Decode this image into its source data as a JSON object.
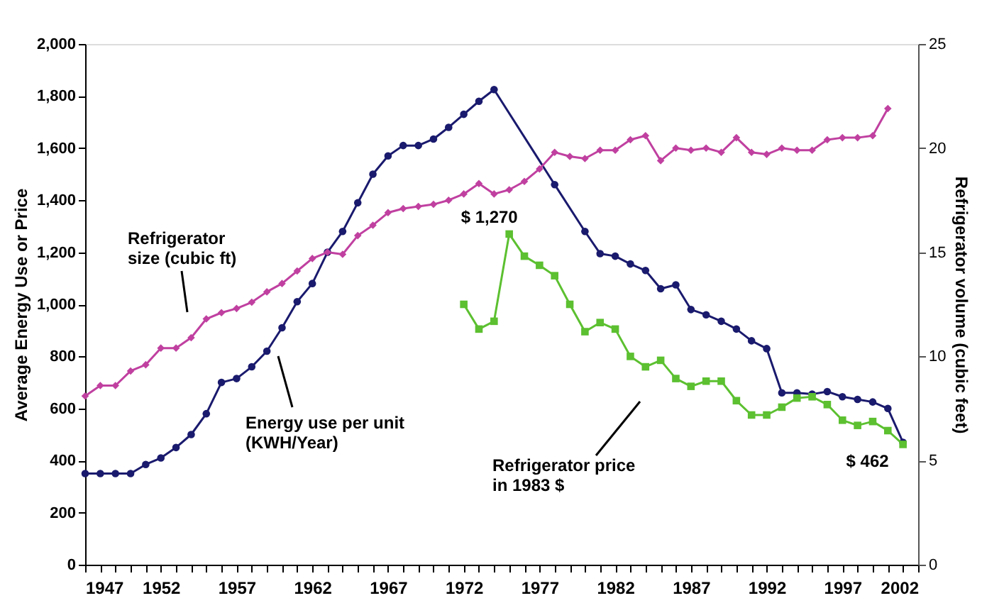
{
  "chart_data": {
    "type": "line",
    "ylabel": "Average Energy Use or Price",
    "y2label": "Refrigerator volume (cubic feet)",
    "xlim": [
      1947,
      2002
    ],
    "xticks": [
      1947,
      {
        "value": 1948,
        "label": null
      },
      {
        "value": 1949,
        "label": null
      },
      {
        "value": 1950,
        "label": null
      },
      {
        "value": 1951,
        "label": null
      },
      1952,
      {
        "value": 1953,
        "label": null
      },
      {
        "value": 1954,
        "label": null
      },
      {
        "value": 1955,
        "label": null
      },
      {
        "value": 1956,
        "label": null
      },
      1957,
      {
        "value": 1958,
        "label": null
      },
      {
        "value": 1959,
        "label": null
      },
      {
        "value": 1960,
        "label": null
      },
      {
        "value": 1961,
        "label": null
      },
      1962,
      {
        "value": 1963,
        "label": null
      },
      {
        "value": 1964,
        "label": null
      },
      {
        "value": 1965,
        "label": null
      },
      {
        "value": 1966,
        "label": null
      },
      1967,
      {
        "value": 1968,
        "label": null
      },
      {
        "value": 1969,
        "label": null
      },
      {
        "value": 1970,
        "label": null
      },
      {
        "value": 1971,
        "label": null
      },
      1972,
      {
        "value": 1973,
        "label": null
      },
      {
        "value": 1974,
        "label": null
      },
      {
        "value": 1975,
        "label": null
      },
      {
        "value": 1976,
        "label": null
      },
      1977,
      {
        "value": 1978,
        "label": null
      },
      {
        "value": 1979,
        "label": null
      },
      {
        "value": 1980,
        "label": null
      },
      {
        "value": 1981,
        "label": null
      },
      1982,
      {
        "value": 1983,
        "label": null
      },
      {
        "value": 1984,
        "label": null
      },
      {
        "value": 1985,
        "label": null
      },
      {
        "value": 1986,
        "label": null
      },
      1987,
      {
        "value": 1988,
        "label": null
      },
      {
        "value": 1989,
        "label": null
      },
      {
        "value": 1990,
        "label": null
      },
      {
        "value": 1991,
        "label": null
      },
      1992,
      {
        "value": 1993,
        "label": null
      },
      {
        "value": 1994,
        "label": null
      },
      {
        "value": 1995,
        "label": null
      },
      {
        "value": 1996,
        "label": null
      },
      1997,
      {
        "value": 1998,
        "label": null
      },
      {
        "value": 1999,
        "label": null
      },
      {
        "value": 2000,
        "label": null
      },
      {
        "value": 2001,
        "label": null
      },
      2002
    ],
    "ylim": [
      0,
      2000
    ],
    "yticks": [
      0,
      200,
      400,
      600,
      800,
      {
        "value": 1000,
        "label": "1,000"
      },
      {
        "value": 1200,
        "label": "1,200"
      },
      {
        "value": 1400,
        "label": "1,400"
      },
      {
        "value": 1600,
        "label": "1,600"
      },
      {
        "value": 1800,
        "label": "1,800"
      },
      {
        "value": 2000,
        "label": "2,000"
      }
    ],
    "y2lim": [
      0,
      25
    ],
    "y2ticks": [
      0,
      5,
      10,
      15,
      20,
      25
    ],
    "grid": false,
    "series": [
      {
        "name": "Refrigerator\nsize (cubic ft)",
        "color": "#c040a0",
        "axis": "y2",
        "marker": "diamond",
        "x": [
          1947,
          1948,
          1949,
          1950,
          1951,
          1952,
          1953,
          1954,
          1955,
          1956,
          1957,
          1958,
          1959,
          1960,
          1961,
          1962,
          1963,
          1964,
          1965,
          1966,
          1967,
          1968,
          1969,
          1970,
          1971,
          1972,
          1973,
          1974,
          1975,
          1976,
          1977,
          1978,
          1979,
          1980,
          1981,
          1982,
          1983,
          1984,
          1985,
          1986,
          1987,
          1988,
          1989,
          1990,
          1991,
          1992,
          1993,
          1994,
          1995,
          1996,
          1997,
          1998,
          1999,
          2000
        ],
        "values": [
          8.1,
          8.6,
          8.6,
          9.3,
          9.6,
          10.4,
          10.4,
          10.9,
          11.8,
          12.1,
          12.3,
          12.6,
          13.1,
          13.5,
          14.1,
          14.7,
          15.0,
          14.9,
          15.8,
          16.3,
          16.9,
          17.1,
          17.2,
          17.3,
          17.5,
          17.8,
          18.3,
          17.8,
          18.0,
          18.4,
          19.0,
          19.8,
          19.6,
          19.5,
          19.9,
          19.9,
          20.4,
          20.6,
          19.4,
          20.0,
          19.9,
          20.0,
          19.8,
          20.5,
          19.8,
          19.7,
          20.0,
          19.9,
          19.9,
          20.4,
          20.5,
          20.5,
          20.6,
          21.9
        ]
      },
      {
        "name": "Energy use per unit\n(KWH/Year)",
        "color": "#1a1a6e",
        "marker": "circle",
        "x": [
          1947,
          1948,
          1949,
          1950,
          1951,
          1952,
          1953,
          1954,
          1955,
          1956,
          1957,
          1958,
          1959,
          1960,
          1961,
          1962,
          1963,
          1964,
          1965,
          1966,
          1967,
          1968,
          1969,
          1970,
          1971,
          1972,
          1973,
          1974,
          1978,
          1980,
          1981,
          1982,
          1983,
          1984,
          1985,
          1986,
          1987,
          1988,
          1989,
          1990,
          1991,
          1992,
          1993,
          1994,
          1995,
          1996,
          1997,
          1998,
          1999,
          2000,
          2001
        ],
        "values": [
          350,
          350,
          350,
          350,
          385,
          410,
          450,
          500,
          580,
          700,
          715,
          760,
          820,
          910,
          1010,
          1080,
          1200,
          1280,
          1390,
          1500,
          1570,
          1610,
          1610,
          1635,
          1680,
          1730,
          1780,
          1825,
          1460,
          1280,
          1195,
          1185,
          1155,
          1130,
          1060,
          1075,
          980,
          960,
          935,
          905,
          860,
          830,
          660,
          660,
          655,
          665,
          645,
          635,
          625,
          600,
          470
        ]
      },
      {
        "name": "Refrigerator price\nin 1983 $",
        "color": "#5cc030",
        "marker": "square",
        "x": [
          1972,
          1973,
          1974,
          1975,
          1976,
          1977,
          1978,
          1979,
          1980,
          1981,
          1982,
          1983,
          1984,
          1985,
          1986,
          1987,
          1988,
          1989,
          1990,
          1991,
          1992,
          1993,
          1994,
          1995,
          1996,
          1997,
          1998,
          1999,
          2000,
          2001
        ],
        "values": [
          1000,
          905,
          935,
          1270,
          1185,
          1150,
          1110,
          1000,
          895,
          930,
          905,
          800,
          760,
          785,
          715,
          685,
          705,
          705,
          630,
          575,
          575,
          605,
          640,
          645,
          615,
          555,
          535,
          550,
          515,
          462
        ]
      }
    ],
    "annotations": [
      {
        "text": "$ 1,270",
        "x": 1975,
        "y": 1270
      },
      {
        "text": "$ 462",
        "x": 2001,
        "y": 462
      }
    ]
  }
}
